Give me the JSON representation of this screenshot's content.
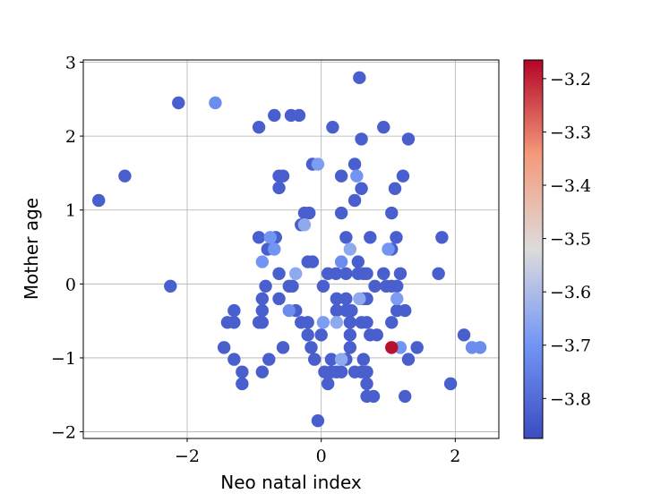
{
  "chart_data": {
    "type": "scatter",
    "xlabel": "Neo natal index",
    "ylabel": "Mother age",
    "xlim": [
      -3.55,
      2.65
    ],
    "ylim": [
      -2.09,
      3.03
    ],
    "xticks": [
      {
        "value": -2,
        "label": "−2"
      },
      {
        "value": 0,
        "label": "0"
      },
      {
        "value": 2,
        "label": "2"
      }
    ],
    "yticks": [
      {
        "value": -2,
        "label": "−2"
      },
      {
        "value": -1,
        "label": "−1"
      },
      {
        "value": 0,
        "label": "0"
      },
      {
        "value": 1,
        "label": "1"
      },
      {
        "value": 2,
        "label": "2"
      },
      {
        "value": 3,
        "label": "3"
      }
    ],
    "grid": true,
    "colormap": "coolwarm",
    "colorbar": {
      "range": [
        -3.875,
        -3.165
      ],
      "ticks": [
        {
          "value": -3.2,
          "label": "−3.2"
        },
        {
          "value": -3.3,
          "label": "−3.3"
        },
        {
          "value": -3.4,
          "label": "−3.4"
        },
        {
          "value": -3.5,
          "label": "−3.5"
        },
        {
          "value": -3.6,
          "label": "−3.6"
        },
        {
          "value": -3.7,
          "label": "−3.7"
        },
        {
          "value": -3.8,
          "label": "−3.8"
        }
      ]
    },
    "points": [
      {
        "x": -3.32,
        "y": 1.13,
        "c": -3.83
      },
      {
        "x": -2.93,
        "y": 1.46,
        "c": -3.83
      },
      {
        "x": -2.25,
        "y": -0.03,
        "c": -3.83
      },
      {
        "x": -2.13,
        "y": 2.45,
        "c": -3.83
      },
      {
        "x": -1.58,
        "y": 2.45,
        "c": -3.72
      },
      {
        "x": -0.93,
        "y": 2.12,
        "c": -3.83
      },
      {
        "x": -0.7,
        "y": 2.28,
        "c": -3.83
      },
      {
        "x": -0.45,
        "y": 2.28,
        "c": -3.83
      },
      {
        "x": -0.33,
        "y": 2.28,
        "c": -3.83
      },
      {
        "x": 0.57,
        "y": 2.79,
        "c": -3.83
      },
      {
        "x": 0.17,
        "y": 2.12,
        "c": -3.83
      },
      {
        "x": 0.93,
        "y": 2.12,
        "c": -3.83
      },
      {
        "x": 0.6,
        "y": 1.96,
        "c": -3.83
      },
      {
        "x": 1.3,
        "y": 1.96,
        "c": -3.83
      },
      {
        "x": -0.63,
        "y": 1.46,
        "c": -3.83
      },
      {
        "x": -0.57,
        "y": 1.46,
        "c": -3.83
      },
      {
        "x": -0.63,
        "y": 1.3,
        "c": -3.83
      },
      {
        "x": -0.13,
        "y": 1.62,
        "c": -3.83
      },
      {
        "x": -0.05,
        "y": 1.62,
        "c": -3.68
      },
      {
        "x": 0.3,
        "y": 1.46,
        "c": -3.83
      },
      {
        "x": 0.5,
        "y": 1.62,
        "c": -3.83
      },
      {
        "x": 0.53,
        "y": 1.46,
        "c": -3.7
      },
      {
        "x": 0.6,
        "y": 1.29,
        "c": -3.83
      },
      {
        "x": 1.22,
        "y": 1.46,
        "c": -3.83
      },
      {
        "x": 1.1,
        "y": 1.29,
        "c": -3.83
      },
      {
        "x": 0.5,
        "y": 1.13,
        "c": -3.83
      },
      {
        "x": -0.25,
        "y": 0.96,
        "c": -3.83
      },
      {
        "x": -0.18,
        "y": 0.96,
        "c": -3.83
      },
      {
        "x": -0.3,
        "y": 0.8,
        "c": -3.83
      },
      {
        "x": -0.25,
        "y": 0.8,
        "c": -3.65
      },
      {
        "x": 0.3,
        "y": 0.96,
        "c": -3.83
      },
      {
        "x": 1.05,
        "y": 0.96,
        "c": -3.83
      },
      {
        "x": -0.93,
        "y": 0.63,
        "c": -3.83
      },
      {
        "x": -0.76,
        "y": 0.63,
        "c": -3.7
      },
      {
        "x": -0.68,
        "y": 0.63,
        "c": -3.83
      },
      {
        "x": -0.8,
        "y": 0.47,
        "c": -3.83
      },
      {
        "x": -0.7,
        "y": 0.47,
        "c": -3.7
      },
      {
        "x": 0.37,
        "y": 0.63,
        "c": -3.83
      },
      {
        "x": 0.73,
        "y": 0.63,
        "c": -3.83
      },
      {
        "x": 1.12,
        "y": 0.63,
        "c": -3.83
      },
      {
        "x": 1.8,
        "y": 0.63,
        "c": -3.83
      },
      {
        "x": 0.43,
        "y": 0.47,
        "c": -3.65
      },
      {
        "x": 1.0,
        "y": 0.47,
        "c": -3.7
      },
      {
        "x": 1.05,
        "y": 0.47,
        "c": -3.83
      },
      {
        "x": -0.88,
        "y": 0.3,
        "c": -3.7
      },
      {
        "x": -0.2,
        "y": 0.3,
        "c": -3.83
      },
      {
        "x": -0.13,
        "y": 0.3,
        "c": -3.83
      },
      {
        "x": 0.3,
        "y": 0.3,
        "c": -3.72
      },
      {
        "x": 0.55,
        "y": 0.3,
        "c": -3.83
      },
      {
        "x": -0.63,
        "y": 0.14,
        "c": -3.83
      },
      {
        "x": -0.38,
        "y": 0.14,
        "c": -3.65
      },
      {
        "x": 0.1,
        "y": 0.14,
        "c": -3.83
      },
      {
        "x": 0.22,
        "y": 0.14,
        "c": -3.83
      },
      {
        "x": 0.37,
        "y": 0.14,
        "c": -3.83
      },
      {
        "x": 0.55,
        "y": 0.14,
        "c": -3.83
      },
      {
        "x": 0.63,
        "y": 0.14,
        "c": -3.83
      },
      {
        "x": 0.68,
        "y": 0.14,
        "c": -3.83
      },
      {
        "x": 0.93,
        "y": 0.14,
        "c": -3.83
      },
      {
        "x": 1.18,
        "y": 0.14,
        "c": -3.83
      },
      {
        "x": 1.75,
        "y": 0.14,
        "c": -3.83
      },
      {
        "x": -0.83,
        "y": -0.03,
        "c": -3.83
      },
      {
        "x": -0.48,
        "y": -0.03,
        "c": -3.83
      },
      {
        "x": -0.43,
        "y": -0.03,
        "c": -3.83
      },
      {
        "x": 0.03,
        "y": -0.03,
        "c": -3.83
      },
      {
        "x": 0.8,
        "y": -0.03,
        "c": -3.83
      },
      {
        "x": 0.97,
        "y": -0.03,
        "c": -3.83
      },
      {
        "x": 1.05,
        "y": -0.03,
        "c": -3.83
      },
      {
        "x": 1.13,
        "y": -0.03,
        "c": -3.83
      },
      {
        "x": -0.88,
        "y": -0.2,
        "c": -3.83
      },
      {
        "x": -0.63,
        "y": -0.2,
        "c": -3.83
      },
      {
        "x": 0.23,
        "y": -0.2,
        "c": -3.83
      },
      {
        "x": 0.37,
        "y": -0.2,
        "c": -3.83
      },
      {
        "x": 0.57,
        "y": -0.2,
        "c": -3.65
      },
      {
        "x": 0.63,
        "y": -0.2,
        "c": -3.83
      },
      {
        "x": 0.68,
        "y": -0.2,
        "c": -3.83
      },
      {
        "x": 1.13,
        "y": -0.2,
        "c": -3.68
      },
      {
        "x": -1.3,
        "y": -0.36,
        "c": -3.83
      },
      {
        "x": -0.88,
        "y": -0.36,
        "c": -3.83
      },
      {
        "x": -0.48,
        "y": -0.36,
        "c": -3.72
      },
      {
        "x": -0.38,
        "y": -0.36,
        "c": -3.83
      },
      {
        "x": 0.23,
        "y": -0.36,
        "c": -3.83
      },
      {
        "x": 0.37,
        "y": -0.36,
        "c": -3.83
      },
      {
        "x": 0.45,
        "y": -0.36,
        "c": -3.83
      },
      {
        "x": 1.13,
        "y": -0.36,
        "c": -3.83
      },
      {
        "x": 1.25,
        "y": -0.36,
        "c": -3.83
      },
      {
        "x": -1.4,
        "y": -0.52,
        "c": -3.83
      },
      {
        "x": -1.3,
        "y": -0.52,
        "c": -3.83
      },
      {
        "x": -0.93,
        "y": -0.52,
        "c": -3.83
      },
      {
        "x": -0.88,
        "y": -0.52,
        "c": -3.83
      },
      {
        "x": -0.3,
        "y": -0.52,
        "c": -3.83
      },
      {
        "x": -0.2,
        "y": -0.52,
        "c": -3.83
      },
      {
        "x": 0.03,
        "y": -0.52,
        "c": -3.68
      },
      {
        "x": 0.23,
        "y": -0.52,
        "c": -3.65
      },
      {
        "x": 0.43,
        "y": -0.52,
        "c": -3.83
      },
      {
        "x": 0.6,
        "y": -0.52,
        "c": -3.83
      },
      {
        "x": 0.68,
        "y": -0.52,
        "c": -3.83
      },
      {
        "x": 1.05,
        "y": -0.52,
        "c": -3.83
      },
      {
        "x": -0.2,
        "y": -0.69,
        "c": -3.83
      },
      {
        "x": 0.0,
        "y": -0.69,
        "c": -3.83
      },
      {
        "x": 0.43,
        "y": -0.69,
        "c": -3.83
      },
      {
        "x": 0.73,
        "y": -0.69,
        "c": -3.83
      },
      {
        "x": 0.83,
        "y": -0.69,
        "c": -3.83
      },
      {
        "x": 2.13,
        "y": -0.69,
        "c": -3.83
      },
      {
        "x": -1.45,
        "y": -0.86,
        "c": -3.83
      },
      {
        "x": -0.57,
        "y": -0.86,
        "c": -3.83
      },
      {
        "x": -0.15,
        "y": -0.86,
        "c": -3.83
      },
      {
        "x": 0.43,
        "y": -0.86,
        "c": -3.83
      },
      {
        "x": 1.05,
        "y": -0.86,
        "c": -3.18
      },
      {
        "x": 1.18,
        "y": -0.86,
        "c": -3.7
      },
      {
        "x": 1.43,
        "y": -0.86,
        "c": -3.83
      },
      {
        "x": 2.25,
        "y": -0.86,
        "c": -3.72
      },
      {
        "x": 2.37,
        "y": -0.86,
        "c": -3.72
      },
      {
        "x": -1.3,
        "y": -1.02,
        "c": -3.83
      },
      {
        "x": -0.78,
        "y": -1.02,
        "c": -3.83
      },
      {
        "x": -0.1,
        "y": -1.02,
        "c": -3.83
      },
      {
        "x": 0.15,
        "y": -1.02,
        "c": -3.83
      },
      {
        "x": 0.3,
        "y": -1.02,
        "c": -3.65
      },
      {
        "x": 0.37,
        "y": -1.02,
        "c": -3.83
      },
      {
        "x": 0.63,
        "y": -1.02,
        "c": -3.83
      },
      {
        "x": 1.3,
        "y": -1.02,
        "c": -3.83
      },
      {
        "x": -1.18,
        "y": -1.19,
        "c": -3.83
      },
      {
        "x": -0.88,
        "y": -1.19,
        "c": -3.83
      },
      {
        "x": 0.05,
        "y": -1.19,
        "c": -3.83
      },
      {
        "x": 0.15,
        "y": -1.19,
        "c": -3.83
      },
      {
        "x": 0.23,
        "y": -1.19,
        "c": -3.83
      },
      {
        "x": 0.3,
        "y": -1.19,
        "c": -3.83
      },
      {
        "x": 0.5,
        "y": -1.19,
        "c": -3.83
      },
      {
        "x": 0.6,
        "y": -1.19,
        "c": -3.83
      },
      {
        "x": 0.68,
        "y": -1.19,
        "c": -3.83
      },
      {
        "x": -1.18,
        "y": -1.35,
        "c": -3.83
      },
      {
        "x": 0.1,
        "y": -1.35,
        "c": -3.83
      },
      {
        "x": 0.68,
        "y": -1.35,
        "c": -3.83
      },
      {
        "x": 1.93,
        "y": -1.35,
        "c": -3.83
      },
      {
        "x": 0.68,
        "y": -1.52,
        "c": -3.83
      },
      {
        "x": 0.78,
        "y": -1.52,
        "c": -3.83
      },
      {
        "x": 1.25,
        "y": -1.52,
        "c": -3.83
      },
      {
        "x": -0.05,
        "y": -1.85,
        "c": -3.83
      }
    ]
  }
}
